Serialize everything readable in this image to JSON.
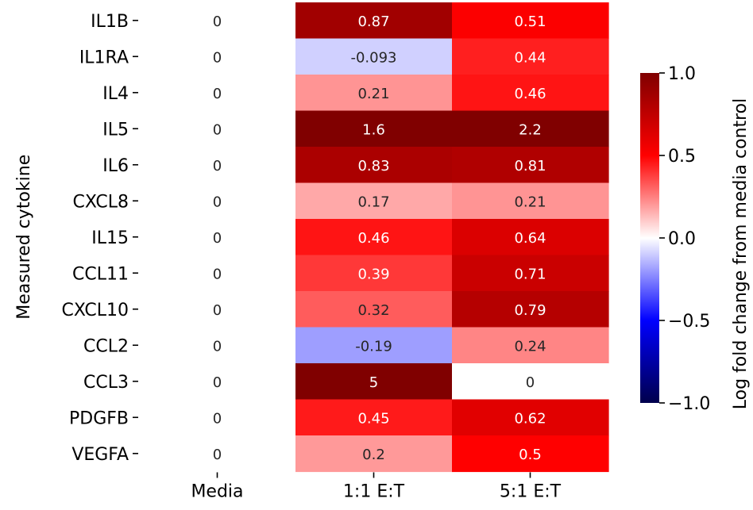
{
  "chart_data": {
    "type": "heatmap",
    "title": "",
    "xlabel": "",
    "ylabel": "Measured cytokine",
    "columns": [
      "Media",
      "1:1 E:T",
      "5:1 E:T"
    ],
    "rows": [
      "IL1B",
      "IL1RA",
      "IL4",
      "IL5",
      "IL6",
      "CXCL8",
      "IL15",
      "CCL11",
      "CXCL10",
      "CCL2",
      "CCL3",
      "PDGFB",
      "VEGFA"
    ],
    "values": [
      [
        0,
        0.87,
        0.51
      ],
      [
        0,
        -0.093,
        0.44
      ],
      [
        0,
        0.21,
        0.46
      ],
      [
        0,
        1.6,
        2.2
      ],
      [
        0,
        0.83,
        0.81
      ],
      [
        0,
        0.17,
        0.21
      ],
      [
        0,
        0.46,
        0.64
      ],
      [
        0,
        0.39,
        0.71
      ],
      [
        0,
        0.32,
        0.79
      ],
      [
        0,
        -0.19,
        0.24
      ],
      [
        0,
        5,
        0
      ],
      [
        0,
        0.45,
        0.62
      ],
      [
        0,
        0.2,
        0.5
      ]
    ],
    "value_labels": [
      [
        "0",
        "0.87",
        "0.51"
      ],
      [
        "0",
        "-0.093",
        "0.44"
      ],
      [
        "0",
        "0.21",
        "0.46"
      ],
      [
        "0",
        "1.6",
        "2.2"
      ],
      [
        "0",
        "0.83",
        "0.81"
      ],
      [
        "0",
        "0.17",
        "0.21"
      ],
      [
        "0",
        "0.46",
        "0.64"
      ],
      [
        "0",
        "0.39",
        "0.71"
      ],
      [
        "0",
        "0.32",
        "0.79"
      ],
      [
        "0",
        "-0.19",
        "0.24"
      ],
      [
        "0",
        "5",
        "0"
      ],
      [
        "0",
        "0.45",
        "0.62"
      ],
      [
        "0",
        "0.2",
        "0.5"
      ]
    ],
    "colorbar": {
      "label": "Log fold change from media control",
      "range": [
        -1.0,
        1.0
      ],
      "ticks": [
        1.0,
        0.5,
        0.0,
        -0.5,
        -1.0
      ],
      "tick_labels": [
        "1.0",
        "0.5",
        "0.0",
        "−0.5",
        "−1.0"
      ],
      "colormap": "seismic",
      "colors": [
        "#00004c",
        "#0000ff",
        "#ffffff",
        "#ff0000",
        "#800000"
      ]
    }
  }
}
